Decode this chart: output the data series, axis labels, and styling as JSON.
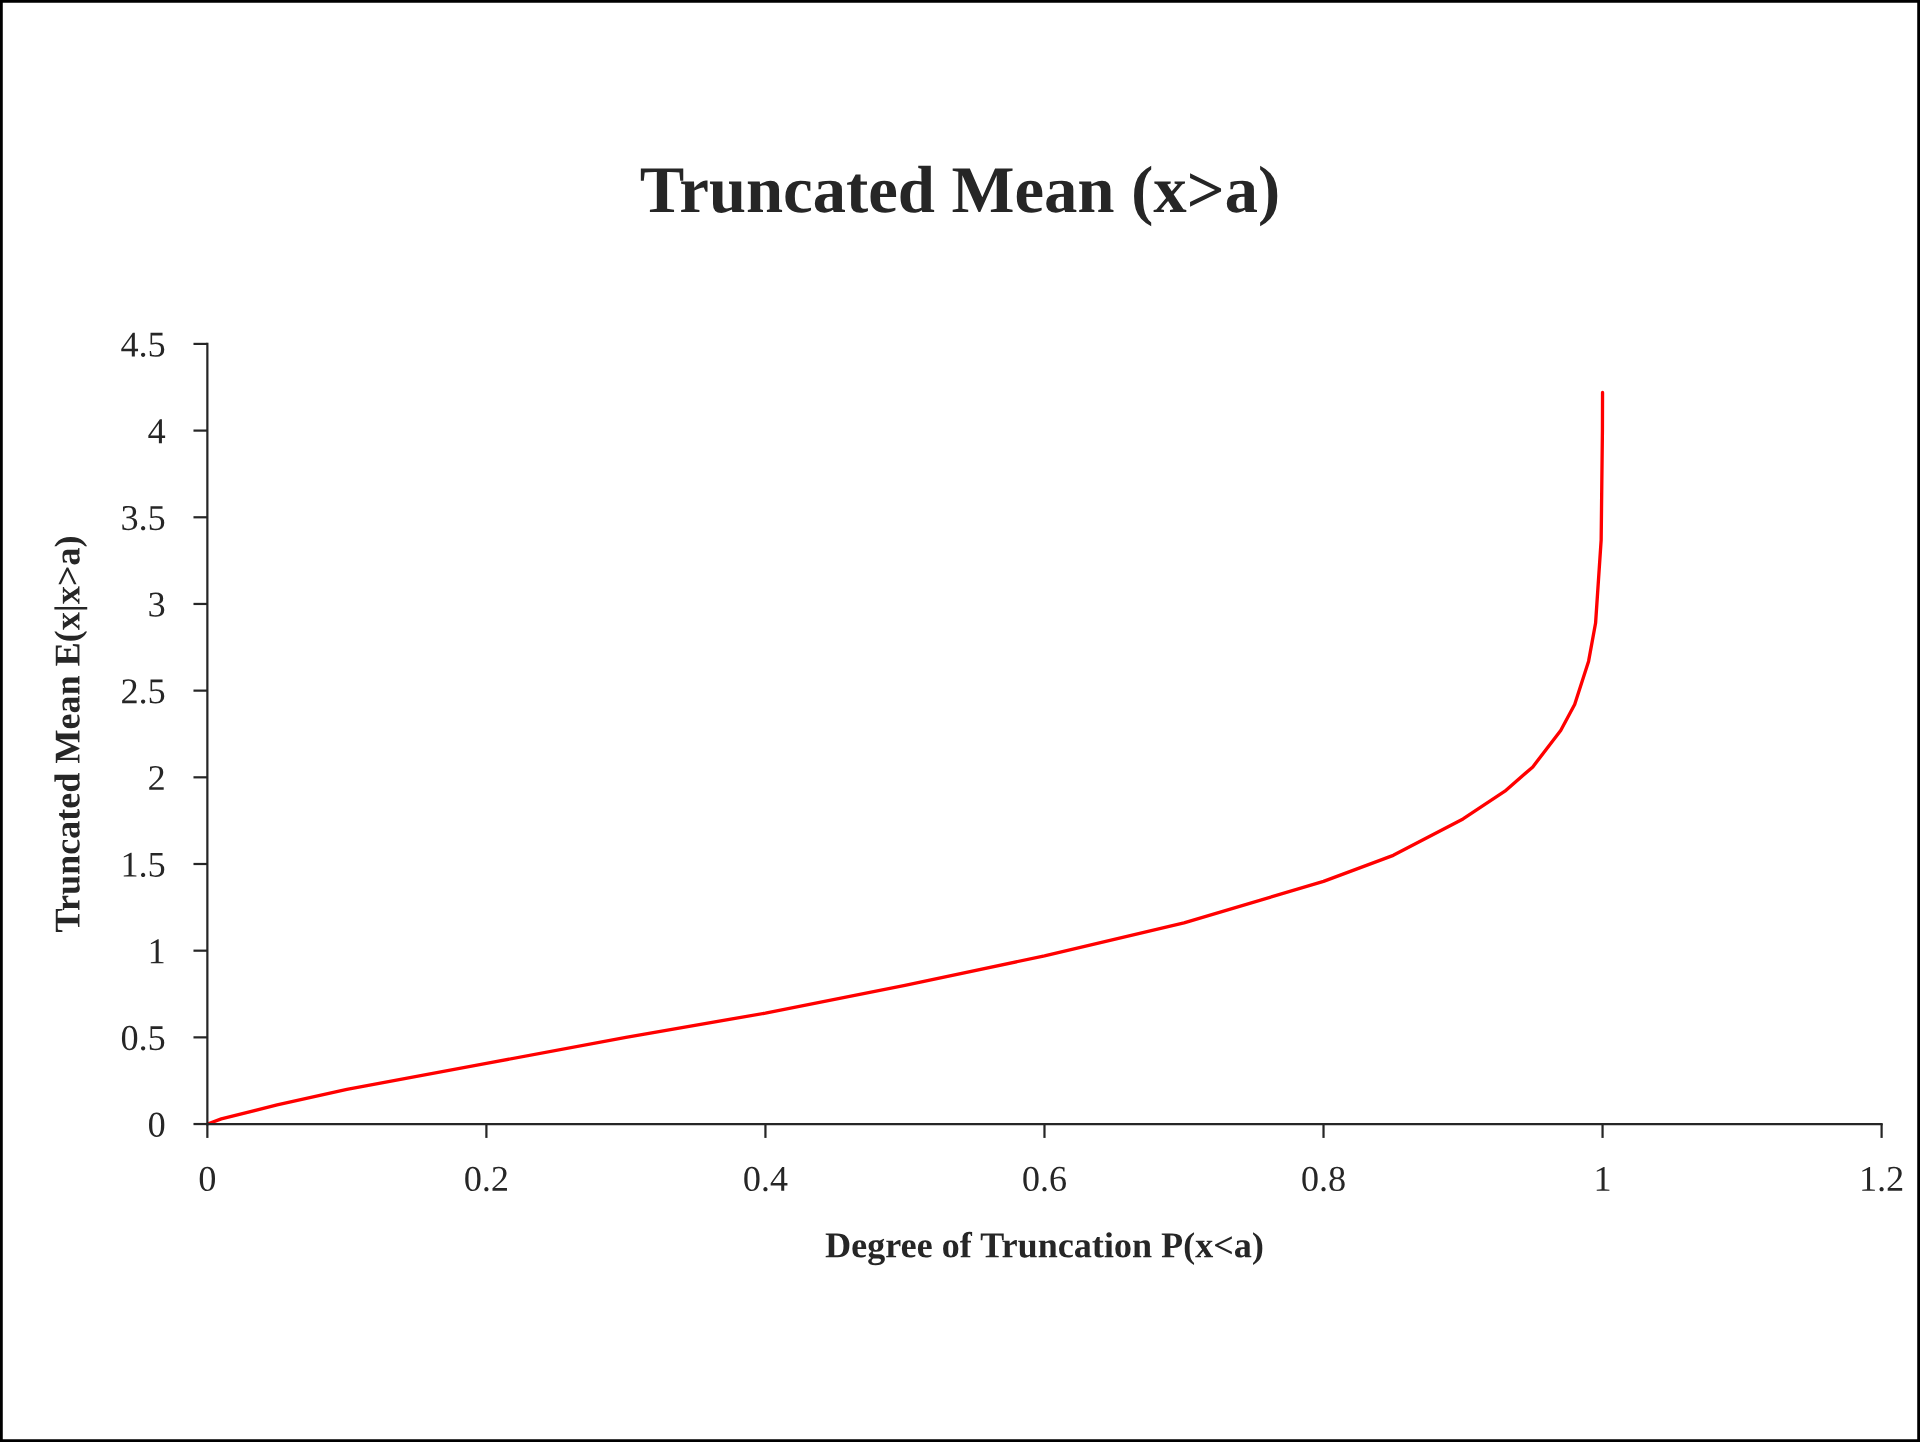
{
  "chart_data": {
    "type": "line",
    "title": "Truncated Mean (x>a)",
    "xlabel": "Degree of Truncation P(x<a)",
    "ylabel": "Truncated Mean E(x|x>a)",
    "x": [
      0,
      0.01,
      0.05,
      0.1,
      0.2,
      0.3,
      0.4,
      0.5,
      0.6,
      0.7,
      0.8,
      0.85,
      0.9,
      0.93,
      0.95,
      0.97,
      0.98,
      0.99,
      0.995,
      0.999,
      0.9999,
      0.99999
    ],
    "series": [
      {
        "color": "#ff0000",
        "values": [
          0,
          0.03,
          0.11,
          0.2,
          0.35,
          0.5,
          0.64,
          0.8,
          0.97,
          1.16,
          1.4,
          1.55,
          1.76,
          1.92,
          2.06,
          2.27,
          2.42,
          2.67,
          2.89,
          3.37,
          4.0,
          4.22
        ]
      }
    ],
    "xlim": [
      0,
      1.2
    ],
    "xticks": [
      0,
      0.2,
      0.4,
      0.6,
      0.8,
      1,
      1.2
    ],
    "ylim": [
      0,
      4.5
    ],
    "yticks": [
      0,
      0.5,
      1,
      1.5,
      2,
      2.5,
      3,
      3.5,
      4,
      4.5
    ],
    "grid": false,
    "marker": "none",
    "line_style": "solid"
  }
}
